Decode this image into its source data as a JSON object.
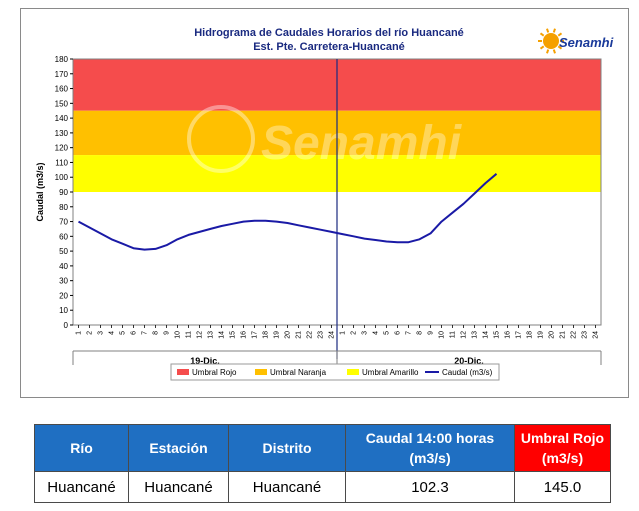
{
  "chart_data": {
    "type": "line",
    "title": "Hidrograma de Caudales Horarios del río Huancané",
    "subtitle": "Est. Pte. Carretera-Huancané",
    "logo_text": "Senamhi",
    "watermark_text": "Senamhi",
    "ylabel": "Caudal  (m3/s)",
    "ylim": [
      0,
      180
    ],
    "yticks": [
      0,
      10,
      20,
      30,
      40,
      50,
      60,
      70,
      80,
      90,
      100,
      110,
      120,
      130,
      140,
      150,
      160,
      170,
      180
    ],
    "hour_ticks": [
      "1",
      "2",
      "3",
      "4",
      "5",
      "6",
      "7",
      "8",
      "9",
      "10",
      "11",
      "12",
      "13",
      "14",
      "15",
      "16",
      "17",
      "18",
      "19",
      "20",
      "21",
      "22",
      "23",
      "24"
    ],
    "day_groups": [
      {
        "label": "19-Dic.",
        "start": 0,
        "end": 24
      },
      {
        "label": "20-Dic.",
        "start": 24,
        "end": 48
      }
    ],
    "x_count": 48,
    "thresholds": [
      {
        "name": "Umbral Rojo",
        "min": 145,
        "max": 180,
        "color": "#f54c4c"
      },
      {
        "name": "Umbral Naranja",
        "min": 115,
        "max": 145,
        "color": "#ffc000"
      },
      {
        "name": "Umbral Amarillo",
        "min": 90,
        "max": 115,
        "color": "#ffff00"
      }
    ],
    "series": [
      {
        "name": "Caudal (m3/s)",
        "color": "#1a1aa6",
        "x": [
          1,
          2,
          3,
          4,
          5,
          6,
          7,
          8,
          9,
          10,
          11,
          12,
          13,
          14,
          15,
          16,
          17,
          18,
          19,
          20,
          21,
          22,
          23,
          24,
          25,
          26,
          27,
          28,
          29,
          30,
          31,
          32,
          33,
          34,
          35,
          36,
          37,
          38,
          39
        ],
        "values": [
          70,
          66,
          62,
          58,
          55,
          52,
          51,
          51.5,
          54,
          58,
          61,
          63,
          65,
          67,
          68.5,
          70,
          70.5,
          70.5,
          70,
          69,
          67.5,
          66,
          64.5,
          63,
          61.5,
          60,
          58.5,
          57.5,
          56.5,
          56,
          56,
          58,
          62,
          70,
          76,
          82,
          89,
          96,
          102.3
        ]
      }
    ],
    "legend_position": "bottom",
    "divider_at": 24,
    "grid": false
  },
  "table": {
    "headers": [
      {
        "lines": [
          "Río"
        ],
        "red": false
      },
      {
        "lines": [
          "Estación"
        ],
        "red": false
      },
      {
        "lines": [
          "Distrito"
        ],
        "red": false
      },
      {
        "lines": [
          "Caudal  14:00 horas",
          "(m3/s)"
        ],
        "red": false
      },
      {
        "lines": [
          "Umbral Rojo",
          "(m3/s)"
        ],
        "red": true
      }
    ],
    "row": [
      "Huancané",
      "Huancané",
      "Huancané",
      "102.3",
      "145.0"
    ]
  }
}
